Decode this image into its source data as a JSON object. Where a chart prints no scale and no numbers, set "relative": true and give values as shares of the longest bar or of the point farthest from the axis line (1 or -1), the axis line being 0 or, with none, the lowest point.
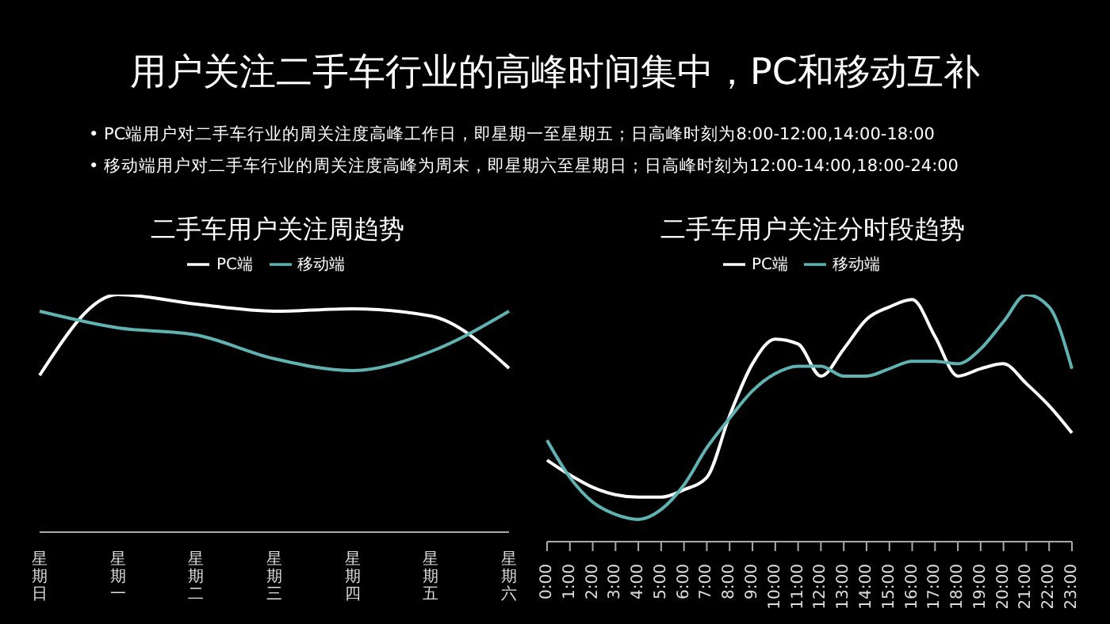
{
  "chart_data": [
    {
      "type": "other",
      "title": "用户关注二手车行业的高峰时间集中，PC和移动互补",
      "annotations": [
        "• PC端用户对二手车行业的周关注度高峰工作日，即星期一至星期五；日高峰时刻为8:00-12:00,14:00-18:00",
        "• 移动端用户对二手车行业的周关注度高峰为周末，即星期六至星期日；日高峰时刻为12:00-14:00,18:00-24:00"
      ]
    },
    {
      "type": "line",
      "title": "二手车用户关注周趋势",
      "relative": true,
      "legend": "top",
      "marker": "none",
      "grid": false,
      "categories": [
        "星期日",
        "星期一",
        "星期二",
        "星期三",
        "星期四",
        "星期五",
        "星期六"
      ],
      "series": [
        {
          "name": "PC端",
          "color": "#ffffff",
          "values": [
            0.66,
            1,
            0.96,
            0.93,
            0.94,
            0.91,
            0.69
          ]
        },
        {
          "name": "移动端",
          "color": "#5fb3b3",
          "values": [
            0.93,
            0.86,
            0.83,
            0.73,
            0.68,
            0.76,
            0.93
          ]
        }
      ]
    },
    {
      "type": "line",
      "title": "二手车用户关注分时段趋势",
      "relative": true,
      "legend": "top",
      "marker": "none",
      "grid": false,
      "categories": [
        "0:00",
        "1:00",
        "2:00",
        "3:00",
        "4:00",
        "5:00",
        "6:00",
        "7:00",
        "8:00",
        "9:00",
        "10:00",
        "11:00",
        "12:00",
        "13:00",
        "14:00",
        "15:00",
        "16:00",
        "17:00",
        "18:00",
        "19:00",
        "20:00",
        "21:00",
        "22:00",
        "23:00"
      ],
      "series": [
        {
          "name": "PC端",
          "color": "#ffffff",
          "values": [
            0.33,
            0.27,
            0.22,
            0.19,
            0.18,
            0.18,
            0.21,
            0.26,
            0.51,
            0.72,
            0.82,
            0.8,
            0.67,
            0.78,
            0.9,
            0.95,
            0.98,
            0.83,
            0.67,
            0.7,
            0.72,
            0.64,
            0.55,
            0.44
          ]
        },
        {
          "name": "移动端",
          "color": "#5fb3b3",
          "values": [
            0.41,
            0.26,
            0.16,
            0.11,
            0.09,
            0.13,
            0.23,
            0.38,
            0.5,
            0.61,
            0.68,
            0.71,
            0.71,
            0.67,
            0.67,
            0.7,
            0.73,
            0.73,
            0.72,
            0.78,
            0.89,
            1,
            0.95,
            0.7
          ]
        }
      ]
    }
  ]
}
